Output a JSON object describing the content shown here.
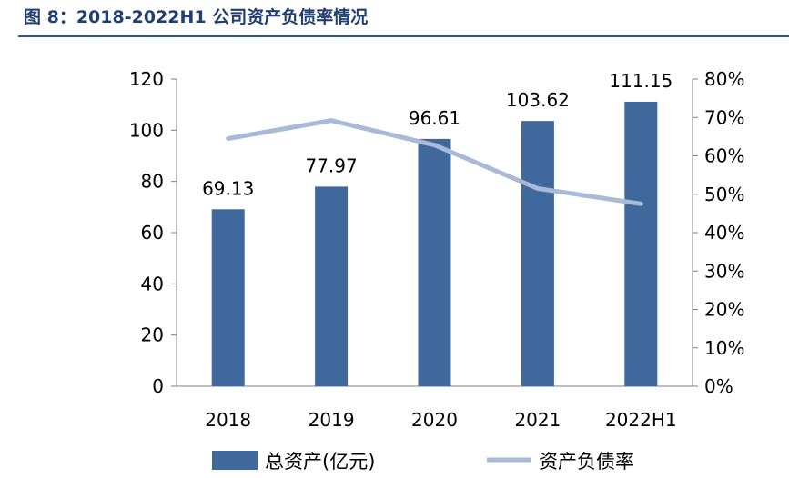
{
  "figure_title": "图 8：2018-2022H1 公司资产负债率情况",
  "chart_data": {
    "type": "bar",
    "categories": [
      "2018",
      "2019",
      "2020",
      "2021",
      "2022H1"
    ],
    "series": [
      {
        "name": "总资产(亿元)",
        "type": "bar",
        "axis": "left",
        "values": [
          69.13,
          77.97,
          96.61,
          103.62,
          111.15
        ],
        "data_labels": [
          "69.13",
          "77.97",
          "96.61",
          "103.62",
          "111.15"
        ]
      },
      {
        "name": "资产负债率",
        "type": "line",
        "axis": "right",
        "values": [
          64.5,
          69.2,
          62.8,
          51.5,
          47.5
        ]
      }
    ],
    "y_left": {
      "ylim": [
        0,
        120
      ],
      "ticks": [
        "0",
        "20",
        "40",
        "60",
        "80",
        "100",
        "120"
      ]
    },
    "y_right": {
      "ylim": [
        0,
        80
      ],
      "ticks": [
        "0%",
        "10%",
        "20%",
        "30%",
        "40%",
        "50%",
        "60%",
        "70%",
        "80%"
      ]
    },
    "legend_placement": "bottom",
    "grid": false,
    "colors": {
      "bar": "#3f689c",
      "line": "#a8bad8",
      "axis": "#7f7f7f",
      "title": "#1f3e74"
    }
  }
}
